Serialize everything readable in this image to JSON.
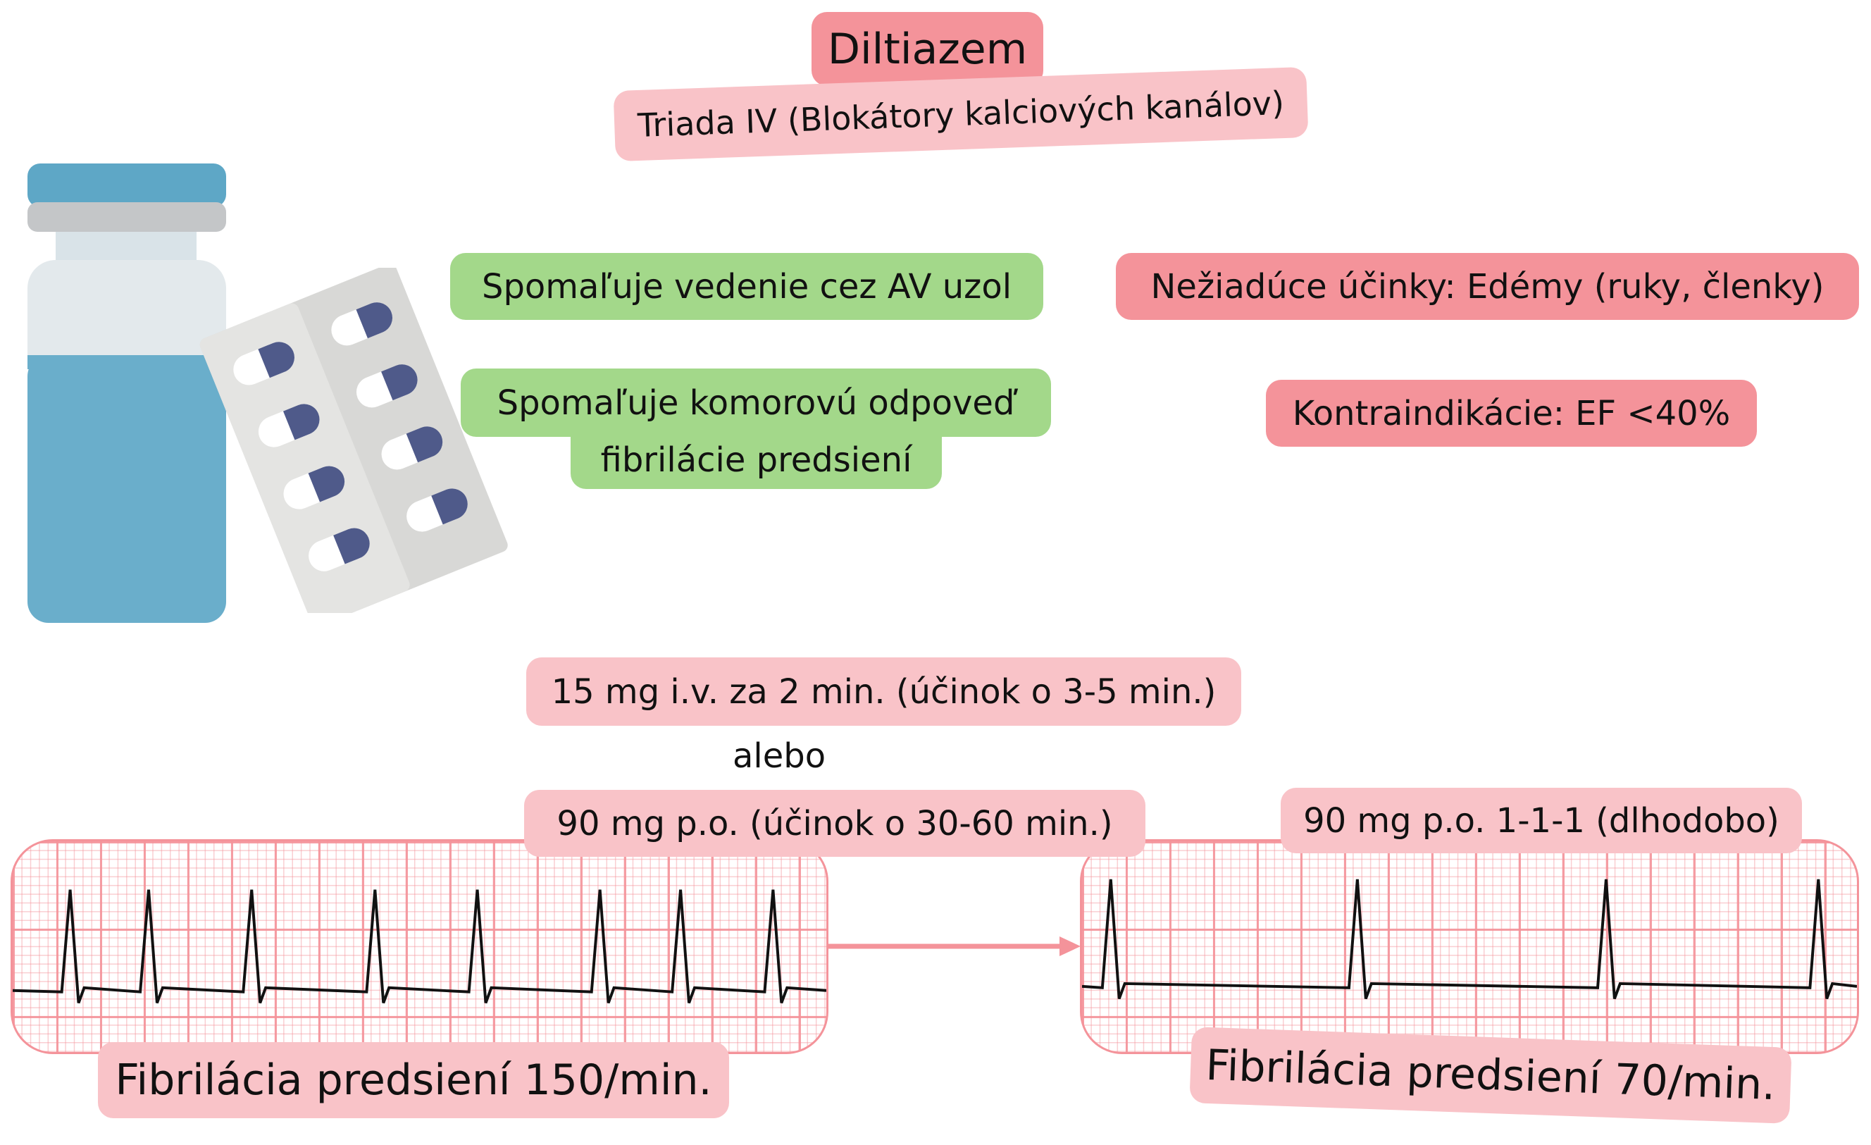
{
  "title": "Diltiazem",
  "subtitle": "Triada IV (Blokátory kalciových kanálov)",
  "effects": [
    "Spomaľuje vedenie cez AV uzol",
    "Spomaľuje komorovú odpoveď",
    "fibrilácie predsiení"
  ],
  "adverse": "Nežiadúce účinky: Edémy (ruky, členky)",
  "contraindication": "Kontraindikácie: EF <40%",
  "dosing": {
    "iv": "15 mg i.v. za 2 min.  (účinok o 3-5 min.)",
    "or": "alebo",
    "po": "90 mg p.o. (účinok o 30-60 min.)",
    "long_term": "90 mg p.o. 1-1-1 (dlhodobo)"
  },
  "ecg_before": {
    "label": "Fibrilácia predsiení 150/min."
  },
  "ecg_after": {
    "label": "Fibrilácia predsiení 70/min."
  },
  "colors": {
    "red": "#f4939a",
    "pink": "#f9c3c8",
    "green": "#a3d88a",
    "vial": "#6aaecb",
    "pill": "#4f5a8a"
  }
}
